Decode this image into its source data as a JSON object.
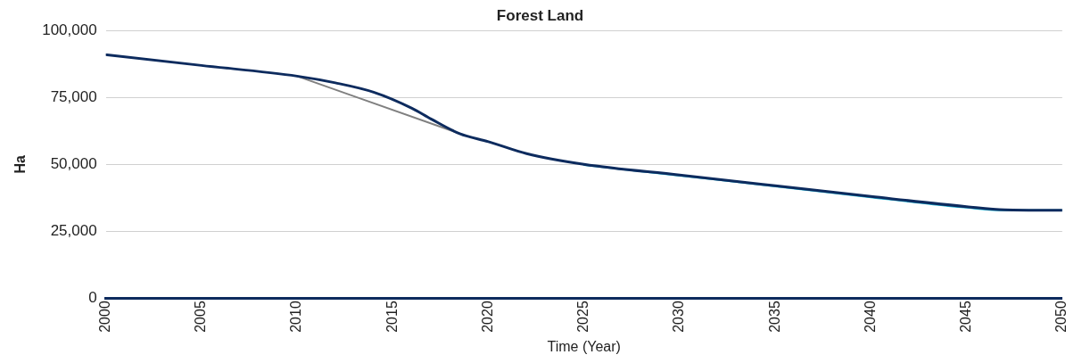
{
  "chart_data": {
    "type": "line",
    "title": "Forest Land",
    "xlabel": "Time (Year)",
    "ylabel": "Ha",
    "xlim": [
      2000,
      2050
    ],
    "xticks": [
      2000,
      2005,
      2010,
      2015,
      2020,
      2025,
      2030,
      2035,
      2040,
      2045,
      2050
    ],
    "ylim": [
      0,
      100000
    ],
    "yticks": [
      {
        "value": 0,
        "label": "0"
      },
      {
        "value": 25000,
        "label": "25,000"
      },
      {
        "value": 50000,
        "label": "50,000"
      },
      {
        "value": 75000,
        "label": "75,000"
      },
      {
        "value": 100000,
        "label": "100,000"
      }
    ],
    "grid": "y",
    "legend": false,
    "marker": "none",
    "line_style": "solid",
    "series": [
      {
        "color": "#808080",
        "x": [
          2010,
          2018.5
        ],
        "values": [
          83000,
          61500
        ]
      },
      {
        "color": "#1fb6d6",
        "x": [
          2025,
          2030,
          2035,
          2040,
          2045,
          2047,
          2050
        ],
        "values": [
          49800,
          45800,
          41800,
          37700,
          33800,
          32800,
          32800
        ]
      },
      {
        "color": "#0d2b5e",
        "x": [
          2000,
          2005,
          2010,
          2012,
          2014,
          2016,
          2017,
          2018.5,
          2020,
          2022,
          2025,
          2030,
          2035,
          2040,
          2045,
          2047,
          2050
        ],
        "values": [
          91000,
          87000,
          83000,
          80500,
          77000,
          71000,
          67000,
          61500,
          58500,
          54000,
          50000,
          46000,
          42000,
          38000,
          34200,
          33000,
          32800
        ]
      }
    ]
  }
}
